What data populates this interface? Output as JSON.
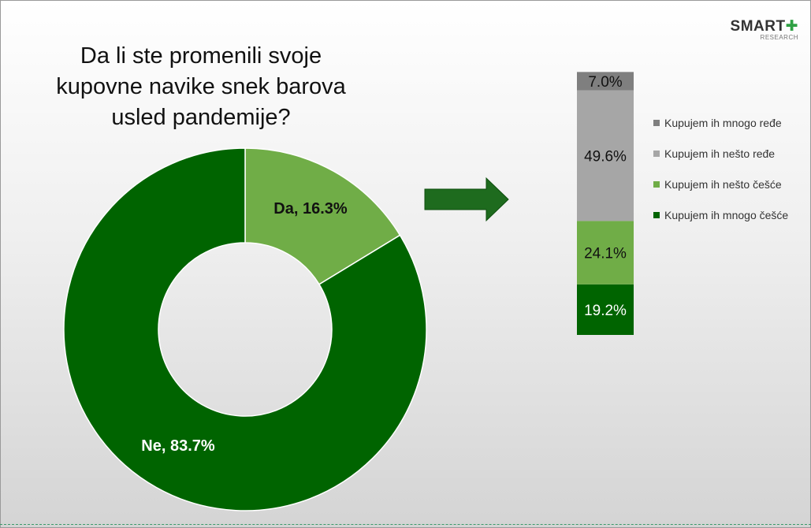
{
  "title": "Da li ste promenili svoje kupovne navike snek barova usled pandemije?",
  "logo": {
    "main": "SMART",
    "sub": "RESEARCH",
    "plus_color": "#2ea043"
  },
  "chart_data": [
    {
      "type": "pie",
      "subtype": "donut",
      "slices": [
        {
          "label": "Da, 16.3%",
          "name": "Da",
          "value": 16.3,
          "color": "#70ad47"
        },
        {
          "label": "Ne, 83.7%",
          "name": "Ne",
          "value": 83.7,
          "color": "#006400"
        }
      ]
    },
    {
      "type": "bar",
      "subtype": "stacked-100",
      "categories": [
        ""
      ],
      "series": [
        {
          "name": "Kupujem ih mnogo češće",
          "values": [
            19.2
          ],
          "label": "19.2%",
          "color": "#006400",
          "text_color": "#ffffff"
        },
        {
          "name": "Kupujem ih nešto češće",
          "values": [
            24.1
          ],
          "label": "24.1%",
          "color": "#70ad47",
          "text_color": "#111111"
        },
        {
          "name": "Kupujem ih nešto ređe",
          "values": [
            49.6
          ],
          "label": "49.6%",
          "color": "#a6a6a6",
          "text_color": "#111111"
        },
        {
          "name": "Kupujem ih mnogo ređe",
          "values": [
            7.0
          ],
          "label": "7.0%",
          "color": "#7f7f7f",
          "text_color": "#111111"
        }
      ],
      "legend": "right",
      "legend_order": [
        "Kupujem ih mnogo ređe",
        "Kupujem ih nešto ređe",
        "Kupujem ih nešto češće",
        "Kupujem ih mnogo češće"
      ]
    }
  ],
  "arrow_color": "#1e6b1e"
}
